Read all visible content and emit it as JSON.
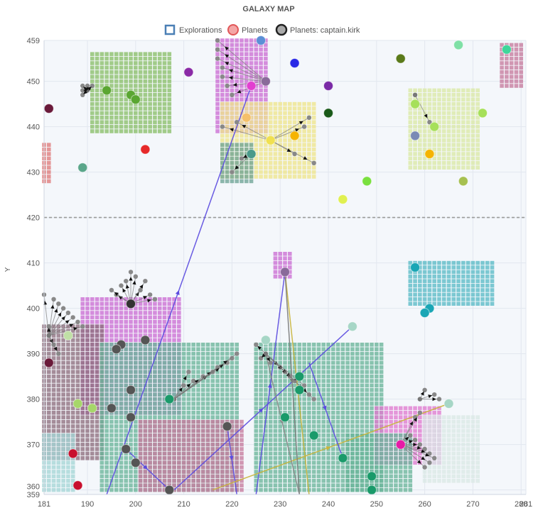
{
  "chart_data": {
    "type": "scatter",
    "title": "GALAXY MAP",
    "xlabel": "",
    "ylabel": "Y",
    "xlim": [
      181,
      281
    ],
    "ylim": [
      359,
      459
    ],
    "x_ticks": [
      181,
      190,
      200,
      210,
      220,
      230,
      240,
      250,
      260,
      270,
      280,
      281
    ],
    "y_ticks": [
      359,
      360,
      370,
      380,
      390,
      400,
      410,
      420,
      430,
      440,
      450,
      459
    ],
    "grid": true,
    "legend_position": "top",
    "reference_line": {
      "axis": "y",
      "value": 420,
      "style": "dashed",
      "color": "#9a9a9a"
    },
    "legend": [
      {
        "name": "Explorations",
        "marker": "hollow-square",
        "color": "#4a7fb5"
      },
      {
        "name": "Planets",
        "marker": "circle",
        "color": "#e15759"
      },
      {
        "name": "Planets: captain.kirk",
        "marker": "circle",
        "color": "#555555"
      }
    ],
    "regions": [
      {
        "color": "#8bbf6a",
        "x": [
          191,
          207
        ],
        "y": [
          439,
          456
        ]
      },
      {
        "color": "#cc6fd4",
        "x": [
          217,
          227
        ],
        "y": [
          439,
          459
        ]
      },
      {
        "color": "#f0e68c",
        "x": [
          218,
          237
        ],
        "y": [
          429,
          445
        ]
      },
      {
        "color": "#6fa596",
        "x": [
          218,
          224
        ],
        "y": [
          428,
          436
        ]
      },
      {
        "color": "#dbe9a6",
        "x": [
          257,
          271
        ],
        "y": [
          431,
          448
        ]
      },
      {
        "color": "#c77b9e",
        "x": [
          276,
          280
        ],
        "y": [
          449,
          458
        ]
      },
      {
        "color": "#e07b7b",
        "x": [
          181,
          182
        ],
        "y": [
          428,
          436
        ]
      },
      {
        "color": "#5bbcc7",
        "x": [
          257,
          274
        ],
        "y": [
          401,
          410
        ]
      },
      {
        "color": "#cc6fd4",
        "x": [
          189,
          209
        ],
        "y": [
          377,
          402
        ]
      },
      {
        "color": "#8e6f7e",
        "x": [
          181,
          193
        ],
        "y": [
          367,
          396
        ]
      },
      {
        "color": "#6ab59a",
        "x": [
          193,
          221
        ],
        "y": [
          360,
          392
        ]
      },
      {
        "color": "#c77b9e",
        "x": [
          201,
          222
        ],
        "y": [
          360,
          375
        ]
      },
      {
        "color": "#6ab59a",
        "x": [
          225,
          251
        ],
        "y": [
          360,
          392
        ]
      },
      {
        "color": "#e07bd0",
        "x": [
          250,
          263
        ],
        "y": [
          366,
          378
        ]
      },
      {
        "color": "#6ab59a",
        "x": [
          244,
          257
        ],
        "y": [
          360,
          372
        ]
      },
      {
        "color": "#dbe9e6",
        "x": [
          260,
          271
        ],
        "y": [
          362,
          376
        ]
      },
      {
        "color": "#a5d6d6",
        "x": [
          181,
          187
        ],
        "y": [
          360,
          372
        ]
      },
      {
        "color": "#cc6fd4",
        "x": [
          229,
          232
        ],
        "y": [
          407,
          412
        ]
      }
    ],
    "planets": [
      {
        "x": 226,
        "y": 459,
        "color": "#5b8fd6"
      },
      {
        "x": 233,
        "y": 454,
        "color": "#2929e6"
      },
      {
        "x": 255,
        "y": 455,
        "color": "#5a7a1a"
      },
      {
        "x": 267,
        "y": 458,
        "color": "#7fe0a6"
      },
      {
        "x": 277,
        "y": 457,
        "color": "#3fd69a"
      },
      {
        "x": 211,
        "y": 452,
        "color": "#8a2aa6"
      },
      {
        "x": 224,
        "y": 449,
        "color": "#e23fd0"
      },
      {
        "x": 227,
        "y": 450,
        "color": "#8a6a9a"
      },
      {
        "x": 240,
        "y": 449,
        "color": "#7a2aa6"
      },
      {
        "x": 194,
        "y": 448,
        "color": "#5aa632"
      },
      {
        "x": 199,
        "y": 447,
        "color": "#5aa632"
      },
      {
        "x": 200,
        "y": 446,
        "color": "#5aa632"
      },
      {
        "x": 182,
        "y": 444,
        "color": "#6a1a3a"
      },
      {
        "x": 240,
        "y": 443,
        "color": "#1a5a1a"
      },
      {
        "x": 223,
        "y": 442,
        "color": "#f5c06a"
      },
      {
        "x": 258,
        "y": 445,
        "color": "#a6e05a"
      },
      {
        "x": 272,
        "y": 443,
        "color": "#a6e05a"
      },
      {
        "x": 262,
        "y": 440,
        "color": "#a6e05a"
      },
      {
        "x": 233,
        "y": 438,
        "color": "#f5b400"
      },
      {
        "x": 228,
        "y": 437,
        "color": "#f0e050"
      },
      {
        "x": 258,
        "y": 438,
        "color": "#7a8ab5"
      },
      {
        "x": 202,
        "y": 435,
        "color": "#e62929"
      },
      {
        "x": 224,
        "y": 434,
        "color": "#4a9a8a"
      },
      {
        "x": 261,
        "y": 434,
        "color": "#f5b400"
      },
      {
        "x": 189,
        "y": 431,
        "color": "#5aa68a"
      },
      {
        "x": 248,
        "y": 428,
        "color": "#7ae03f"
      },
      {
        "x": 268,
        "y": 428,
        "color": "#a6c050"
      },
      {
        "x": 243,
        "y": 424,
        "color": "#e0f050"
      },
      {
        "x": 258,
        "y": 409,
        "color": "#1aa6b5"
      },
      {
        "x": 231,
        "y": 408,
        "color": "#8a6a9a"
      },
      {
        "x": 261,
        "y": 400,
        "color": "#1aa6b5"
      },
      {
        "x": 260,
        "y": 399,
        "color": "#1aa6b5"
      },
      {
        "x": 199,
        "y": 401,
        "color": "#333333"
      },
      {
        "x": 245,
        "y": 396,
        "color": "#a6d6c6"
      },
      {
        "x": 186,
        "y": 394,
        "color": "#c0e0a6"
      },
      {
        "x": 197,
        "y": 392,
        "color": "#555555"
      },
      {
        "x": 202,
        "y": 393,
        "color": "#555555"
      },
      {
        "x": 196,
        "y": 391,
        "color": "#555555"
      },
      {
        "x": 227,
        "y": 393,
        "color": "#a6d6c6"
      },
      {
        "x": 182,
        "y": 388,
        "color": "#6a1a3a"
      },
      {
        "x": 234,
        "y": 385,
        "color": "#1a9a6a"
      },
      {
        "x": 199,
        "y": 382,
        "color": "#555555"
      },
      {
        "x": 234,
        "y": 382,
        "color": "#1a9a6a"
      },
      {
        "x": 207,
        "y": 380,
        "color": "#1a9a6a"
      },
      {
        "x": 188,
        "y": 379,
        "color": "#a6d66a"
      },
      {
        "x": 191,
        "y": 378,
        "color": "#a6d66a"
      },
      {
        "x": 195,
        "y": 378,
        "color": "#555555"
      },
      {
        "x": 265,
        "y": 379,
        "color": "#a6d6c6"
      },
      {
        "x": 199,
        "y": 376,
        "color": "#555555"
      },
      {
        "x": 231,
        "y": 376,
        "color": "#1a9a6a"
      },
      {
        "x": 219,
        "y": 374,
        "color": "#555555"
      },
      {
        "x": 237,
        "y": 372,
        "color": "#1a9a6a"
      },
      {
        "x": 255,
        "y": 370,
        "color": "#e61aa6"
      },
      {
        "x": 198,
        "y": 369,
        "color": "#555555"
      },
      {
        "x": 187,
        "y": 368,
        "color": "#c8102e"
      },
      {
        "x": 243,
        "y": 367,
        "color": "#1a9a6a"
      },
      {
        "x": 200,
        "y": 366,
        "color": "#555555"
      },
      {
        "x": 249,
        "y": 363,
        "color": "#1a9a6a"
      },
      {
        "x": 188,
        "y": 361,
        "color": "#c8102e"
      },
      {
        "x": 249,
        "y": 360,
        "color": "#1a9a6a"
      },
      {
        "x": 207,
        "y": 360,
        "color": "#555555"
      }
    ],
    "fans": [
      {
        "from": [
          190,
          448
        ],
        "to": [
          [
            189,
            449
          ],
          [
            189,
            448
          ],
          [
            189,
            447
          ],
          [
            190,
            449
          ],
          [
            191,
            449
          ]
        ]
      },
      {
        "from": [
          227,
          450
        ],
        "to": [
          [
            217,
            459
          ],
          [
            217,
            457
          ],
          [
            217,
            455
          ],
          [
            218,
            453
          ],
          [
            218,
            451
          ],
          [
            219,
            449
          ],
          [
            220,
            447
          ]
        ]
      },
      {
        "from": [
          228,
          437
        ],
        "to": [
          [
            218,
            440
          ],
          [
            221,
            441
          ],
          [
            236,
            442
          ],
          [
            235,
            440
          ],
          [
            237,
            432
          ],
          [
            233,
            434
          ]
        ]
      },
      {
        "from": [
          224,
          434
        ],
        "to": [
          [
            220,
            430
          ],
          [
            222,
            433
          ]
        ]
      },
      {
        "from": [
          258,
          447
        ],
        "to": [
          [
            261,
            441
          ]
        ]
      },
      {
        "from": [
          199,
          401
        ],
        "to": [
          [
            197,
            405
          ],
          [
            198,
            406
          ],
          [
            199,
            408
          ],
          [
            200,
            407
          ],
          [
            201,
            404
          ],
          [
            202,
            406
          ],
          [
            203,
            403
          ],
          [
            204,
            402
          ],
          [
            196,
            403
          ],
          [
            195,
            404
          ]
        ]
      },
      {
        "from": [
          182,
          394
        ],
        "to": [
          [
            181,
            403
          ],
          [
            183,
            402
          ],
          [
            184,
            401
          ],
          [
            185,
            400
          ],
          [
            186,
            399
          ],
          [
            187,
            398
          ],
          [
            188,
            397
          ],
          [
            189,
            396
          ],
          [
            182,
            396
          ],
          [
            183,
            392
          ],
          [
            184,
            390
          ]
        ]
      },
      {
        "from": [
          208,
          380
        ],
        "to": [
          [
            210,
            383
          ],
          [
            212,
            384
          ],
          [
            214,
            385
          ],
          [
            216,
            386
          ],
          [
            217,
            387
          ],
          [
            219,
            388
          ],
          [
            220,
            389
          ],
          [
            221,
            390
          ],
          [
            211,
            386
          ]
        ]
      },
      {
        "from": [
          227,
          390
        ],
        "to": [
          [
            225,
            392
          ],
          [
            226,
            389
          ],
          [
            228,
            388
          ],
          [
            230,
            387
          ],
          [
            231,
            386
          ],
          [
            232,
            385
          ],
          [
            233,
            384
          ],
          [
            235,
            383
          ],
          [
            236,
            381
          ],
          [
            237,
            380
          ]
        ]
      },
      {
        "from": [
          255,
          370
        ],
        "to": [
          [
            257,
            372
          ],
          [
            258,
            371
          ],
          [
            259,
            370
          ],
          [
            260,
            369
          ],
          [
            261,
            368
          ],
          [
            262,
            367
          ],
          [
            261,
            366
          ],
          [
            260,
            365
          ],
          [
            258,
            376
          ],
          [
            259,
            377
          ]
        ]
      },
      {
        "from": [
          259,
          380
        ],
        "to": [
          [
            260,
            382
          ],
          [
            262,
            381
          ],
          [
            263,
            380
          ]
        ]
      }
    ],
    "routes": [
      {
        "from": [
          194,
          355
        ],
        "to": [
          224,
          449
        ],
        "color": "#5b4be0"
      },
      {
        "from": [
          208,
          360
        ],
        "to": [
          245,
          396
        ],
        "color": "#5b4be0"
      },
      {
        "from": [
          225,
          355
        ],
        "to": [
          231,
          408
        ],
        "color": "#5b4be0"
      },
      {
        "from": [
          198,
          369
        ],
        "to": [
          207,
          360
        ],
        "color": "#5b4be0"
      },
      {
        "from": [
          219,
          374
        ],
        "to": [
          221,
          355
        ],
        "color": "#5b4be0"
      },
      {
        "from": [
          216,
          360
        ],
        "to": [
          265,
          379
        ],
        "color": "#c8b43a"
      },
      {
        "from": [
          231,
          408
        ],
        "to": [
          236,
          358
        ],
        "color": "#c8b43a"
      },
      {
        "from": [
          231,
          408
        ],
        "to": [
          234,
          358
        ],
        "color": "#7a7a7a"
      },
      {
        "from": [
          227,
          390
        ],
        "to": [
          234,
          355
        ],
        "color": "#8a8a8a"
      },
      {
        "from": [
          236,
          388
        ],
        "to": [
          243,
          367
        ],
        "color": "#5b4be0"
      }
    ]
  }
}
